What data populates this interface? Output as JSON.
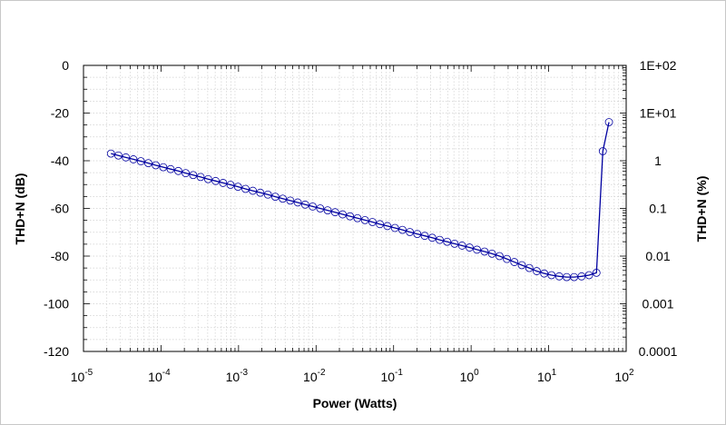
{
  "chart_data": {
    "type": "line",
    "title": "",
    "xlabel": "Power (Watts)",
    "ylabel": "THD+N (dB)",
    "y2label": "THD+N (%)",
    "xscale": "log",
    "xlim": [
      1e-05,
      100
    ],
    "ylim": [
      -120,
      0
    ],
    "y2scale": "log",
    "y2lim": [
      0.0001,
      100
    ],
    "grid": true,
    "legend": "none",
    "x_ticks": [
      {
        "base": "10",
        "exp": "-5",
        "value": 1e-05
      },
      {
        "base": "10",
        "exp": "-4",
        "value": 0.0001
      },
      {
        "base": "10",
        "exp": "-3",
        "value": 0.001
      },
      {
        "base": "10",
        "exp": "-2",
        "value": 0.01
      },
      {
        "base": "10",
        "exp": "-1",
        "value": 0.1
      },
      {
        "base": "10",
        "exp": "0",
        "value": 1
      },
      {
        "base": "10",
        "exp": "1",
        "value": 10
      },
      {
        "base": "10",
        "exp": "2",
        "value": 100
      }
    ],
    "y_ticks": [
      {
        "label": "0",
        "value": 0
      },
      {
        "label": "-20",
        "value": -20
      },
      {
        "label": "-40",
        "value": -40
      },
      {
        "label": "-60",
        "value": -60
      },
      {
        "label": "-80",
        "value": -80
      },
      {
        "label": "-100",
        "value": -100
      },
      {
        "label": "-120",
        "value": -120
      }
    ],
    "y2_ticks": [
      {
        "label": "1E+02",
        "value": 100
      },
      {
        "label": "1E+01",
        "value": 10
      },
      {
        "label": "1",
        "value": 1
      },
      {
        "label": "0.1",
        "value": 0.1
      },
      {
        "label": "0.01",
        "value": 0.01
      },
      {
        "label": "0.001",
        "value": 0.001
      },
      {
        "label": "0.0001",
        "value": 0.0001
      }
    ],
    "series": [
      {
        "color": "#0000a0",
        "marker": "open-circle",
        "x": [
          2.26e-05,
          2.82e-05,
          3.52e-05,
          4.4e-05,
          5.49e-05,
          6.86e-05,
          8.56e-05,
          0.000107,
          0.000133,
          0.000167,
          0.000208,
          0.00026,
          0.000324,
          0.000405,
          0.000506,
          0.000631,
          0.000788,
          0.000984,
          0.00123,
          0.00153,
          0.00191,
          0.00239,
          0.00298,
          0.00372,
          0.00465,
          0.0058,
          0.00724,
          0.00904,
          0.0113,
          0.0141,
          0.0176,
          0.022,
          0.0274,
          0.0342,
          0.0427,
          0.0534,
          0.0666,
          0.0832,
          0.104,
          0.13,
          0.162,
          0.202,
          0.252,
          0.315,
          0.393,
          0.491,
          0.612,
          0.765,
          0.955,
          1.19,
          1.49,
          1.86,
          2.32,
          2.89,
          3.61,
          4.51,
          5.63,
          7.02,
          8.77,
          10.9,
          13.7,
          17.1,
          21.3,
          26.6,
          33.2,
          41.4,
          50.0,
          60.0
        ],
        "y": [
          -37.0,
          -37.8,
          -38.6,
          -39.4,
          -40.2,
          -41.0,
          -41.9,
          -42.7,
          -43.5,
          -44.3,
          -45.2,
          -46.0,
          -46.8,
          -47.7,
          -48.5,
          -49.3,
          -50.1,
          -50.9,
          -51.8,
          -52.6,
          -53.4,
          -54.2,
          -55.1,
          -55.9,
          -56.7,
          -57.5,
          -58.4,
          -59.2,
          -60.0,
          -60.8,
          -61.6,
          -62.5,
          -63.3,
          -64.1,
          -64.9,
          -65.7,
          -66.6,
          -67.4,
          -68.2,
          -69.0,
          -69.9,
          -70.7,
          -71.5,
          -72.3,
          -73.2,
          -74.0,
          -74.8,
          -75.6,
          -76.4,
          -77.3,
          -78.1,
          -79.0,
          -80.0,
          -81.2,
          -82.5,
          -83.8,
          -85.0,
          -86.3,
          -87.3,
          -88.0,
          -88.5,
          -88.8,
          -88.8,
          -88.5,
          -88.0,
          -87.0,
          -36.0,
          -23.8
        ]
      }
    ]
  }
}
